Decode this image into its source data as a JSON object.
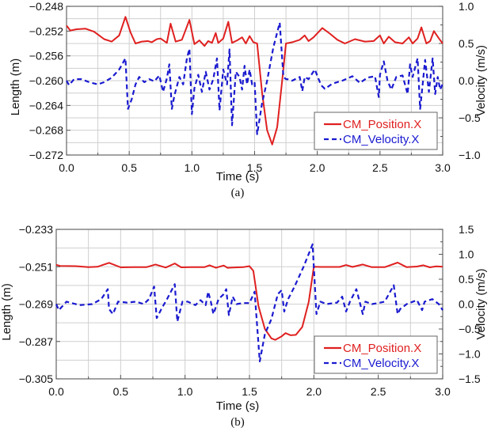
{
  "figure": {
    "captions": [
      "(a)",
      "(b)"
    ]
  },
  "chart_data": [
    {
      "type": "line",
      "panel": "(a)",
      "xlabel": "Time (s)",
      "ylabel": "Length (m)",
      "y2label": "Velocity (m/s)",
      "xlim": [
        0,
        3
      ],
      "ylim": [
        -0.272,
        -0.248
      ],
      "y2lim": [
        -1.0,
        1.0
      ],
      "xticks": [
        "0.0",
        "0.5",
        "1.0",
        "1.5",
        "2.0",
        "2.5",
        "3.0"
      ],
      "xtick_values": [
        0,
        0.5,
        1.0,
        1.5,
        2.0,
        2.5,
        3.0
      ],
      "yticks": [
        "-0.248",
        "-0.252",
        "-0.256",
        "-0.260",
        "-0.264",
        "-0.268",
        "-0.272"
      ],
      "ytick_values": [
        -0.248,
        -0.252,
        -0.256,
        -0.26,
        -0.264,
        -0.268,
        -0.272
      ],
      "y2ticks": [
        "1.0",
        "0.5",
        "0.0",
        "-0.5",
        "-1.0"
      ],
      "y2tick_values": [
        1.0,
        0.5,
        0.0,
        -0.5,
        -1.0
      ],
      "grid": true,
      "legend_position": "bottom-right",
      "series": [
        {
          "name": "CM_Position.X",
          "axis": "left",
          "color": "#e02020",
          "style": "solid",
          "x": [
            0.0,
            0.03,
            0.08,
            0.15,
            0.22,
            0.3,
            0.36,
            0.42,
            0.47,
            0.51,
            0.55,
            0.6,
            0.65,
            0.68,
            0.72,
            0.75,
            0.8,
            0.83,
            0.87,
            0.92,
            0.98,
            1.02,
            1.06,
            1.1,
            1.13,
            1.16,
            1.19,
            1.21,
            1.25,
            1.29,
            1.32,
            1.36,
            1.4,
            1.43,
            1.46,
            1.49,
            1.52,
            1.56,
            1.6,
            1.64,
            1.68,
            1.72,
            1.75,
            1.8,
            1.86,
            1.9,
            1.93,
            1.97,
            2.04,
            2.1,
            2.16,
            2.22,
            2.3,
            2.38,
            2.45,
            2.5,
            2.53,
            2.57,
            2.62,
            2.68,
            2.73,
            2.76,
            2.8,
            2.83,
            2.87,
            2.9,
            2.93,
            2.97,
            3.0
          ],
          "y": [
            -0.2511,
            -0.2519,
            -0.2517,
            -0.2516,
            -0.2521,
            -0.2533,
            -0.2537,
            -0.2527,
            -0.2497,
            -0.2522,
            -0.254,
            -0.2537,
            -0.2536,
            -0.2538,
            -0.2533,
            -0.2532,
            -0.2539,
            -0.2508,
            -0.2537,
            -0.2534,
            -0.2502,
            -0.2541,
            -0.2535,
            -0.2544,
            -0.2536,
            -0.2539,
            -0.2523,
            -0.2539,
            -0.2532,
            -0.2505,
            -0.2539,
            -0.2535,
            -0.253,
            -0.254,
            -0.2528,
            -0.2538,
            -0.254,
            -0.262,
            -0.268,
            -0.2703,
            -0.2675,
            -0.26,
            -0.254,
            -0.2538,
            -0.2534,
            -0.2527,
            -0.2536,
            -0.253,
            -0.2515,
            -0.2524,
            -0.2534,
            -0.254,
            -0.2533,
            -0.2537,
            -0.2536,
            -0.2527,
            -0.254,
            -0.2529,
            -0.2538,
            -0.254,
            -0.253,
            -0.254,
            -0.2532,
            -0.2514,
            -0.254,
            -0.2536,
            -0.252,
            -0.2532,
            -0.254
          ]
        },
        {
          "name": "CM_Velocity.X",
          "axis": "right",
          "color": "#1a1ad0",
          "style": "dashed",
          "x": [
            0.0,
            0.02,
            0.06,
            0.12,
            0.18,
            0.25,
            0.3,
            0.36,
            0.42,
            0.47,
            0.49,
            0.52,
            0.55,
            0.58,
            0.62,
            0.66,
            0.7,
            0.74,
            0.77,
            0.8,
            0.82,
            0.84,
            0.86,
            0.9,
            0.93,
            0.96,
            0.98,
            1.0,
            1.02,
            1.05,
            1.08,
            1.11,
            1.14,
            1.17,
            1.2,
            1.22,
            1.25,
            1.28,
            1.3,
            1.32,
            1.35,
            1.38,
            1.4,
            1.42,
            1.44,
            1.46,
            1.48,
            1.5,
            1.52,
            1.56,
            1.6,
            1.65,
            1.7,
            1.73,
            1.75,
            1.76,
            1.8,
            1.86,
            1.88,
            1.9,
            1.93,
            1.98,
            2.03,
            2.06,
            2.12,
            2.2,
            2.28,
            2.34,
            2.4,
            2.46,
            2.49,
            2.5,
            2.53,
            2.56,
            2.59,
            2.63,
            2.68,
            2.72,
            2.74,
            2.76,
            2.8,
            2.82,
            2.84,
            2.86,
            2.89,
            2.92,
            2.94,
            2.96,
            2.98,
            3.0
          ],
          "y": [
            0.0,
            -0.06,
            0.02,
            0.02,
            -0.02,
            -0.05,
            -0.02,
            0.04,
            0.15,
            0.3,
            -0.38,
            -0.25,
            -0.05,
            0.05,
            -0.02,
            0.02,
            -0.01,
            0.07,
            -0.15,
            0.03,
            0.22,
            -0.38,
            -0.2,
            0.05,
            -0.05,
            0.3,
            0.43,
            -0.45,
            -0.1,
            0.08,
            -0.15,
            0.12,
            -0.12,
            0.02,
            0.3,
            -0.4,
            0.15,
            -0.05,
            0.42,
            -0.6,
            0.12,
            0.05,
            -0.12,
            0.2,
            -0.05,
            0.15,
            -0.05,
            -0.02,
            -0.72,
            -0.3,
            0.0,
            0.45,
            0.78,
            0.05,
            0.02,
            0.02,
            0.0,
            0.05,
            -0.14,
            0.05,
            0.02,
            0.15,
            -0.06,
            -0.11,
            -0.04,
            0.0,
            0.06,
            -0.03,
            0.04,
            0.06,
            -0.22,
            0.08,
            0.26,
            0.0,
            -0.12,
            0.05,
            0.07,
            -0.18,
            0.22,
            0.05,
            0.3,
            -0.38,
            -0.05,
            0.28,
            -0.15,
            0.3,
            -0.18,
            0.05,
            -0.12,
            -0.04
          ]
        }
      ]
    },
    {
      "type": "line",
      "panel": "(b)",
      "xlabel": "Time (s)",
      "ylabel": "Length (m)",
      "y2label": "Velocity (m/s)",
      "xlim": [
        0,
        3
      ],
      "ylim": [
        -0.305,
        -0.233
      ],
      "y2lim": [
        -1.5,
        1.5
      ],
      "xticks": [
        "0.0",
        "0.5",
        "1.0",
        "1.5",
        "2.0",
        "2.5",
        "3.0"
      ],
      "xtick_values": [
        0,
        0.5,
        1.0,
        1.5,
        2.0,
        2.5,
        3.0
      ],
      "yticks": [
        "-0.233",
        "-0.251",
        "-0.269",
        "-0.287",
        "-0.305"
      ],
      "ytick_values": [
        -0.233,
        -0.251,
        -0.269,
        -0.287,
        -0.305
      ],
      "y2ticks": [
        "1.5",
        "1.0",
        "0.5",
        "0.0",
        "-0.5",
        "-1.0",
        "-1.5"
      ],
      "y2tick_values": [
        1.5,
        1.0,
        0.5,
        0.0,
        -0.5,
        -1.0,
        -1.5
      ],
      "grid": true,
      "legend_position": "bottom-right",
      "series": [
        {
          "name": "CM_Position.X",
          "axis": "left",
          "color": "#e02020",
          "style": "solid",
          "x": [
            0.0,
            0.03,
            0.15,
            0.25,
            0.32,
            0.41,
            0.5,
            0.6,
            0.7,
            0.77,
            0.85,
            0.92,
            0.97,
            1.05,
            1.15,
            1.19,
            1.24,
            1.3,
            1.33,
            1.37,
            1.45,
            1.5,
            1.53,
            1.57,
            1.62,
            1.67,
            1.7,
            1.75,
            1.78,
            1.82,
            1.86,
            1.91,
            1.96,
            2.0,
            2.05,
            2.1,
            2.2,
            2.25,
            2.3,
            2.38,
            2.45,
            2.55,
            2.65,
            2.72,
            2.8,
            2.85,
            2.9,
            2.95,
            3.0
          ],
          "y": [
            -0.2501,
            -0.2506,
            -0.2507,
            -0.2512,
            -0.251,
            -0.2491,
            -0.2513,
            -0.2512,
            -0.2512,
            -0.2499,
            -0.2514,
            -0.2494,
            -0.2513,
            -0.2512,
            -0.2512,
            -0.2503,
            -0.2515,
            -0.2504,
            -0.2515,
            -0.2514,
            -0.2512,
            -0.2507,
            -0.253,
            -0.27,
            -0.281,
            -0.2855,
            -0.2862,
            -0.2845,
            -0.283,
            -0.284,
            -0.2838,
            -0.28,
            -0.268,
            -0.251,
            -0.2511,
            -0.2511,
            -0.2511,
            -0.2502,
            -0.2511,
            -0.2499,
            -0.2512,
            -0.2512,
            -0.249,
            -0.2512,
            -0.2509,
            -0.2503,
            -0.2513,
            -0.2508,
            -0.251
          ]
        },
        {
          "name": "CM_Velocity.X",
          "axis": "right",
          "color": "#1a1ad0",
          "style": "dashed",
          "x": [
            0.0,
            0.02,
            0.08,
            0.18,
            0.28,
            0.35,
            0.4,
            0.41,
            0.44,
            0.48,
            0.55,
            0.62,
            0.68,
            0.72,
            0.76,
            0.78,
            0.82,
            0.86,
            0.92,
            0.94,
            0.98,
            1.02,
            1.08,
            1.12,
            1.16,
            1.18,
            1.2,
            1.22,
            1.26,
            1.3,
            1.32,
            1.34,
            1.37,
            1.4,
            1.45,
            1.5,
            1.54,
            1.58,
            1.62,
            1.67,
            1.72,
            1.75,
            1.77,
            1.8,
            1.85,
            1.92,
            1.99,
            2.02,
            2.05,
            2.1,
            2.18,
            2.22,
            2.25,
            2.28,
            2.33,
            2.38,
            2.4,
            2.45,
            2.5,
            2.55,
            2.62,
            2.65,
            2.67,
            2.72,
            2.8,
            2.84,
            2.86,
            2.92,
            2.97,
            3.0
          ],
          "y": [
            0.0,
            -0.12,
            0.05,
            -0.02,
            0.0,
            0.1,
            0.3,
            -0.1,
            -0.2,
            0.05,
            0.03,
            0.05,
            0.0,
            0.1,
            0.35,
            -0.28,
            -0.08,
            0.1,
            0.4,
            -0.35,
            0.05,
            0.05,
            -0.02,
            0.08,
            -0.02,
            0.25,
            0.05,
            -0.2,
            0.1,
            0.2,
            0.3,
            -0.22,
            0.15,
            0.0,
            0.02,
            0.02,
            0.25,
            -1.15,
            -0.6,
            -0.3,
            0.2,
            0.28,
            -0.15,
            0.1,
            0.35,
            0.75,
            1.2,
            -0.2,
            0.05,
            0.0,
            0.03,
            0.15,
            -0.15,
            0.05,
            0.3,
            -0.2,
            0.05,
            0.0,
            0.02,
            0.05,
            0.38,
            -0.2,
            -0.1,
            0.0,
            0.08,
            -0.12,
            0.05,
            0.1,
            0.0,
            -0.12
          ]
        }
      ]
    }
  ]
}
